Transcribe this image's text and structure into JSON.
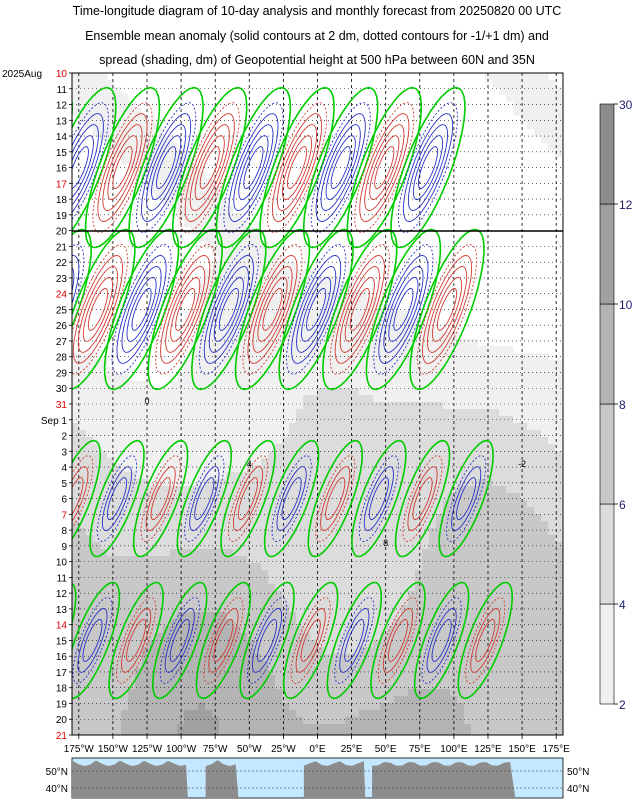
{
  "title_lines": [
    "Time-longitude diagram of 10-day analysis and monthly forecast from 20250820 00 UTC",
    "Ensemble mean anomaly (solid contours at 2 dm, dotted contours for -1/+1 dm) and",
    "spread (shading, dm) of Geopotential height at 500 hPa between 60N and 35N"
  ],
  "chart_data": {
    "type": "heatmap",
    "x_axis": {
      "range": [
        -180,
        180
      ],
      "ticks": [
        -175,
        -150,
        -125,
        -100,
        -75,
        -50,
        -25,
        0,
        25,
        50,
        75,
        100,
        125,
        150,
        175
      ],
      "labels": [
        "175°W",
        "150°W",
        "125°W",
        "100°W",
        "75°W",
        "50°W",
        "25°W",
        "0°E",
        "25°E",
        "50°E",
        "75°E",
        "100°E",
        "125°E",
        "150°E",
        "175°E"
      ]
    },
    "y_axis": {
      "start_label": "2025Aug",
      "rows": [
        {
          "label": "10",
          "red": true
        },
        {
          "label": "11"
        },
        {
          "label": "12"
        },
        {
          "label": "13"
        },
        {
          "label": "14"
        },
        {
          "label": "15"
        },
        {
          "label": "16"
        },
        {
          "label": "17",
          "red": true
        },
        {
          "label": "18"
        },
        {
          "label": "19"
        },
        {
          "label": "20"
        },
        {
          "label": "21"
        },
        {
          "label": "22"
        },
        {
          "label": "23"
        },
        {
          "label": "24",
          "red": true
        },
        {
          "label": "25"
        },
        {
          "label": "26"
        },
        {
          "label": "27"
        },
        {
          "label": "28"
        },
        {
          "label": "29"
        },
        {
          "label": "30"
        },
        {
          "label": "31",
          "red": true
        },
        {
          "label": "Sep  1"
        },
        {
          "label": "2"
        },
        {
          "label": "3"
        },
        {
          "label": "4"
        },
        {
          "label": "5"
        },
        {
          "label": "6"
        },
        {
          "label": "7",
          "red": true
        },
        {
          "label": "8"
        },
        {
          "label": "9"
        },
        {
          "label": "10"
        },
        {
          "label": "11"
        },
        {
          "label": "12"
        },
        {
          "label": "13"
        },
        {
          "label": "14",
          "red": true
        },
        {
          "label": "15"
        },
        {
          "label": "16"
        },
        {
          "label": "17"
        },
        {
          "label": "18"
        },
        {
          "label": "19"
        },
        {
          "label": "20"
        },
        {
          "label": "21",
          "red": true
        }
      ],
      "analysis_forecast_divider": "20"
    },
    "colorbar": {
      "label_values": [
        2,
        4,
        6,
        8,
        10,
        12,
        30
      ],
      "bands": [
        {
          "from": 2,
          "to": 4,
          "color": "#f0f0f0"
        },
        {
          "from": 4,
          "to": 6,
          "color": "#dcdcdc"
        },
        {
          "from": 6,
          "to": 8,
          "color": "#c8c8c8"
        },
        {
          "from": 8,
          "to": 10,
          "color": "#b4b4b4"
        },
        {
          "from": 10,
          "to": 12,
          "color": "#a0a0a0"
        },
        {
          "from": 12,
          "to": 30,
          "color": "#8c8c8c"
        }
      ]
    },
    "contour_colors": {
      "positive": "#d23c32",
      "negative": "#2834c8",
      "zero": "#00cc00"
    },
    "contour_labels": [
      "0",
      "8",
      "4",
      "-2"
    ],
    "map_strip": {
      "lat_labels": [
        "50°N",
        "40°N"
      ],
      "ocean_color": "#c4e8ff",
      "land_color": "#8c8c8c"
    }
  }
}
